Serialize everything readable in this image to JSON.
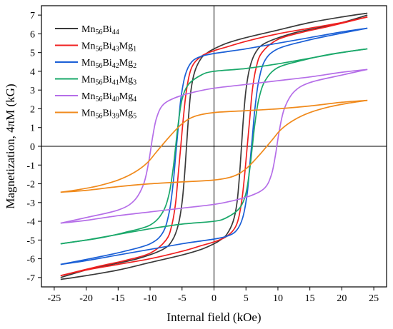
{
  "chart_data": {
    "type": "line",
    "xlabel": "Internal field (kOe)",
    "ylabel": "Magnetization, 4πM (kG)",
    "xlim": [
      -27,
      27
    ],
    "ylim": [
      -7.5,
      7.5
    ],
    "xticks": [
      -25,
      -20,
      -15,
      -10,
      -5,
      0,
      5,
      10,
      15,
      20,
      25
    ],
    "yticks": [
      -7,
      -6,
      -5,
      -4,
      -3,
      -2,
      -1,
      0,
      1,
      2,
      3,
      4,
      5,
      6,
      7
    ],
    "legend_position": "top-left",
    "series": [
      {
        "name": "Mn56Bi44",
        "label_parts": [
          [
            "Mn",
            ""
          ],
          [
            "56",
            "sub"
          ],
          [
            "Bi",
            ""
          ],
          [
            "44",
            "sub"
          ]
        ],
        "color": "#3a3a3a",
        "descending": [
          [
            24,
            7.1
          ],
          [
            20,
            6.9
          ],
          [
            15,
            6.6
          ],
          [
            10,
            6.2
          ],
          [
            5,
            5.8
          ],
          [
            2,
            5.5
          ],
          [
            0,
            5.2
          ],
          [
            -1,
            5.0
          ],
          [
            -2,
            4.7
          ],
          [
            -3,
            4.0
          ],
          [
            -3.6,
            3.0
          ],
          [
            -4.0,
            1.5
          ],
          [
            -4.3,
            0.0
          ],
          [
            -4.6,
            -1.5
          ],
          [
            -5.0,
            -3.0
          ],
          [
            -5.6,
            -4.2
          ],
          [
            -6.5,
            -5.0
          ],
          [
            -8,
            -5.5
          ],
          [
            -12,
            -6.0
          ],
          [
            -16,
            -6.3
          ],
          [
            -20,
            -6.6
          ],
          [
            -24,
            -7.0
          ]
        ],
        "ascending": [
          [
            -24,
            -7.1
          ],
          [
            -20,
            -6.9
          ],
          [
            -15,
            -6.6
          ],
          [
            -10,
            -6.2
          ],
          [
            -5,
            -5.8
          ],
          [
            -2,
            -5.5
          ],
          [
            0,
            -5.2
          ],
          [
            1,
            -5.0
          ],
          [
            2,
            -4.7
          ],
          [
            3,
            -4.0
          ],
          [
            3.6,
            -3.0
          ],
          [
            4.0,
            -1.5
          ],
          [
            4.3,
            0.0
          ],
          [
            4.6,
            1.5
          ],
          [
            5.0,
            3.0
          ],
          [
            5.6,
            4.2
          ],
          [
            6.5,
            5.0
          ],
          [
            8,
            5.5
          ],
          [
            12,
            6.0
          ],
          [
            16,
            6.3
          ],
          [
            20,
            6.6
          ],
          [
            24,
            7.0
          ]
        ]
      },
      {
        "name": "Mn56Bi43Mg1",
        "label_parts": [
          [
            "Mn",
            ""
          ],
          [
            "56",
            "sub"
          ],
          [
            "Bi",
            ""
          ],
          [
            "43",
            "sub"
          ],
          [
            "Mg",
            ""
          ],
          [
            "1",
            "sub"
          ]
        ],
        "color": "#f02020",
        "descending": [
          [
            24,
            6.9
          ],
          [
            20,
            6.6
          ],
          [
            15,
            6.3
          ],
          [
            10,
            6.0
          ],
          [
            5,
            5.6
          ],
          [
            2,
            5.3
          ],
          [
            0,
            5.1
          ],
          [
            -2,
            4.8
          ],
          [
            -3.5,
            4.2
          ],
          [
            -4.3,
            3.0
          ],
          [
            -4.8,
            1.5
          ],
          [
            -5.2,
            0.0
          ],
          [
            -5.6,
            -1.5
          ],
          [
            -6.0,
            -3.0
          ],
          [
            -6.6,
            -4.2
          ],
          [
            -7.5,
            -5.0
          ],
          [
            -10,
            -5.7
          ],
          [
            -14,
            -6.1
          ],
          [
            -18,
            -6.4
          ],
          [
            -24,
            -6.9
          ]
        ],
        "ascending": [
          [
            -24,
            -6.9
          ],
          [
            -20,
            -6.6
          ],
          [
            -15,
            -6.3
          ],
          [
            -10,
            -6.0
          ],
          [
            -5,
            -5.6
          ],
          [
            -2,
            -5.3
          ],
          [
            0,
            -5.1
          ],
          [
            2,
            -4.8
          ],
          [
            3.5,
            -4.2
          ],
          [
            4.3,
            -3.0
          ],
          [
            4.8,
            -1.5
          ],
          [
            5.2,
            0.0
          ],
          [
            5.6,
            1.5
          ],
          [
            6.0,
            3.0
          ],
          [
            6.6,
            4.2
          ],
          [
            7.5,
            5.0
          ],
          [
            10,
            5.7
          ],
          [
            14,
            6.1
          ],
          [
            18,
            6.4
          ],
          [
            24,
            6.9
          ]
        ]
      },
      {
        "name": "Mn56Bi42Mg2",
        "label_parts": [
          [
            "Mn",
            ""
          ],
          [
            "56",
            "sub"
          ],
          [
            "Bi",
            ""
          ],
          [
            "42",
            "sub"
          ],
          [
            "Mg",
            ""
          ],
          [
            "2",
            "sub"
          ]
        ],
        "color": "#1a5fd6",
        "descending": [
          [
            24,
            6.3
          ],
          [
            20,
            6.1
          ],
          [
            15,
            5.8
          ],
          [
            10,
            5.5
          ],
          [
            5,
            5.2
          ],
          [
            2,
            5.05
          ],
          [
            0,
            4.95
          ],
          [
            -2,
            4.8
          ],
          [
            -3.5,
            4.5
          ],
          [
            -4.5,
            3.8
          ],
          [
            -5.2,
            2.5
          ],
          [
            -5.6,
            1.0
          ],
          [
            -6.0,
            -0.5
          ],
          [
            -6.4,
            -2.0
          ],
          [
            -7.0,
            -3.5
          ],
          [
            -8.0,
            -4.6
          ],
          [
            -10,
            -5.2
          ],
          [
            -14,
            -5.6
          ],
          [
            -18,
            -5.9
          ],
          [
            -24,
            -6.3
          ]
        ],
        "ascending": [
          [
            -24,
            -6.3
          ],
          [
            -20,
            -6.1
          ],
          [
            -15,
            -5.8
          ],
          [
            -10,
            -5.5
          ],
          [
            -5,
            -5.2
          ],
          [
            -2,
            -5.05
          ],
          [
            0,
            -4.95
          ],
          [
            2,
            -4.8
          ],
          [
            3.5,
            -4.5
          ],
          [
            4.5,
            -3.8
          ],
          [
            5.2,
            -2.5
          ],
          [
            5.6,
            -1.0
          ],
          [
            6.0,
            0.5
          ],
          [
            6.4,
            2.0
          ],
          [
            7.0,
            3.5
          ],
          [
            8.0,
            4.6
          ],
          [
            10,
            5.2
          ],
          [
            14,
            5.6
          ],
          [
            18,
            5.9
          ],
          [
            24,
            6.3
          ]
        ]
      },
      {
        "name": "Mn56Bi41Mg3",
        "label_parts": [
          [
            "Mn",
            ""
          ],
          [
            "56",
            "sub"
          ],
          [
            "Bi",
            ""
          ],
          [
            "41",
            "sub"
          ],
          [
            "Mg",
            ""
          ],
          [
            "3",
            "sub"
          ]
        ],
        "color": "#1aa86a",
        "descending": [
          [
            24,
            5.2
          ],
          [
            20,
            5.0
          ],
          [
            15,
            4.7
          ],
          [
            10,
            4.4
          ],
          [
            5,
            4.15
          ],
          [
            0,
            4.0
          ],
          [
            -2,
            3.8
          ],
          [
            -4,
            3.3
          ],
          [
            -5.0,
            2.5
          ],
          [
            -5.6,
            1.2
          ],
          [
            -6.0,
            0.0
          ],
          [
            -6.4,
            -1.2
          ],
          [
            -7.0,
            -2.5
          ],
          [
            -8.0,
            -3.5
          ],
          [
            -10,
            -4.2
          ],
          [
            -14,
            -4.6
          ],
          [
            -18,
            -4.9
          ],
          [
            -24,
            -5.2
          ]
        ],
        "ascending": [
          [
            -24,
            -5.2
          ],
          [
            -20,
            -5.0
          ],
          [
            -15,
            -4.7
          ],
          [
            -10,
            -4.4
          ],
          [
            -5,
            -4.15
          ],
          [
            0,
            -4.0
          ],
          [
            2,
            -3.8
          ],
          [
            4,
            -3.3
          ],
          [
            5.0,
            -2.5
          ],
          [
            5.6,
            -1.2
          ],
          [
            6.0,
            0.0
          ],
          [
            6.4,
            1.2
          ],
          [
            7.0,
            2.5
          ],
          [
            8.0,
            3.5
          ],
          [
            10,
            4.2
          ],
          [
            14,
            4.6
          ],
          [
            18,
            4.9
          ],
          [
            24,
            5.2
          ]
        ]
      },
      {
        "name": "Mn56Bi40Mg4",
        "label_parts": [
          [
            "Mn",
            ""
          ],
          [
            "56",
            "sub"
          ],
          [
            "Bi",
            ""
          ],
          [
            "40",
            "sub"
          ],
          [
            "Mg",
            ""
          ],
          [
            "4",
            "sub"
          ]
        ],
        "color": "#b56ee8",
        "descending": [
          [
            24,
            4.1
          ],
          [
            20,
            3.95
          ],
          [
            15,
            3.7
          ],
          [
            10,
            3.5
          ],
          [
            5,
            3.3
          ],
          [
            0,
            3.1
          ],
          [
            -3,
            2.9
          ],
          [
            -6,
            2.6
          ],
          [
            -8,
            2.2
          ],
          [
            -9,
            1.5
          ],
          [
            -9.6,
            0.5
          ],
          [
            -10.2,
            -0.8
          ],
          [
            -11,
            -2.0
          ],
          [
            -12.5,
            -2.9
          ],
          [
            -15,
            -3.4
          ],
          [
            -20,
            -3.8
          ],
          [
            -24,
            -4.1
          ]
        ],
        "ascending": [
          [
            -24,
            -4.1
          ],
          [
            -20,
            -3.95
          ],
          [
            -15,
            -3.7
          ],
          [
            -10,
            -3.5
          ],
          [
            -5,
            -3.3
          ],
          [
            0,
            -3.1
          ],
          [
            3,
            -2.9
          ],
          [
            6,
            -2.6
          ],
          [
            8,
            -2.2
          ],
          [
            9,
            -1.5
          ],
          [
            9.6,
            -0.5
          ],
          [
            10.2,
            0.8
          ],
          [
            11,
            2.0
          ],
          [
            12.5,
            2.9
          ],
          [
            15,
            3.4
          ],
          [
            20,
            3.8
          ],
          [
            24,
            4.1
          ]
        ]
      },
      {
        "name": "Mn56Bi39Mg5",
        "label_parts": [
          [
            "Mn",
            ""
          ],
          [
            "56",
            "sub"
          ],
          [
            "Bi",
            ""
          ],
          [
            "39",
            "sub"
          ],
          [
            "Mg",
            ""
          ],
          [
            "5",
            "sub"
          ]
        ],
        "color": "#f08a1c",
        "descending": [
          [
            24,
            2.45
          ],
          [
            20,
            2.35
          ],
          [
            15,
            2.15
          ],
          [
            10,
            2.0
          ],
          [
            5,
            1.9
          ],
          [
            0,
            1.8
          ],
          [
            -3,
            1.6
          ],
          [
            -5,
            1.2
          ],
          [
            -7,
            0.5
          ],
          [
            -9,
            -0.3
          ],
          [
            -10.5,
            -0.9
          ],
          [
            -12.5,
            -1.4
          ],
          [
            -15,
            -1.8
          ],
          [
            -18,
            -2.1
          ],
          [
            -21,
            -2.3
          ],
          [
            -24,
            -2.45
          ]
        ],
        "ascending": [
          [
            -24,
            -2.45
          ],
          [
            -20,
            -2.35
          ],
          [
            -15,
            -2.15
          ],
          [
            -10,
            -2.0
          ],
          [
            -5,
            -1.9
          ],
          [
            0,
            -1.8
          ],
          [
            3,
            -1.6
          ],
          [
            5,
            -1.2
          ],
          [
            7,
            -0.5
          ],
          [
            9,
            0.3
          ],
          [
            10.5,
            0.9
          ],
          [
            12.5,
            1.4
          ],
          [
            15,
            1.8
          ],
          [
            18,
            2.1
          ],
          [
            21,
            2.3
          ],
          [
            24,
            2.45
          ]
        ]
      }
    ]
  }
}
